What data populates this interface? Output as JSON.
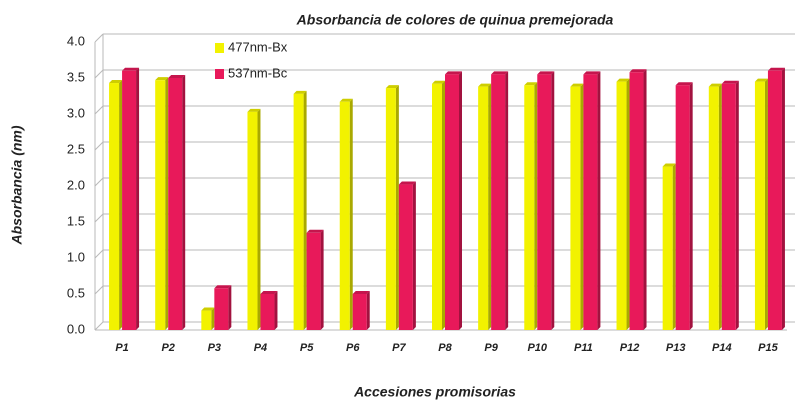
{
  "chart_data": {
    "type": "bar",
    "title": "Absorbancia de colores de quinua premejorada",
    "x_label": "Accesiones promisorias",
    "y_label": "Absorbancia (nm)",
    "categories": [
      "P1",
      "P2",
      "P3",
      "P4",
      "P5",
      "P6",
      "P7",
      "P8",
      "P9",
      "P10",
      "P11",
      "P12",
      "P13",
      "P14",
      "P15"
    ],
    "series": [
      {
        "name": "477nm-Bx",
        "color": "#f2f200",
        "values": [
          3.43,
          3.47,
          0.27,
          3.03,
          3.28,
          3.17,
          3.36,
          3.42,
          3.38,
          3.4,
          3.38,
          3.45,
          2.27,
          3.38,
          3.45
        ]
      },
      {
        "name": "537nm-Bc",
        "color": "#e8195a",
        "values": [
          3.6,
          3.5,
          0.58,
          0.5,
          1.35,
          0.5,
          2.02,
          3.55,
          3.55,
          3.55,
          3.55,
          3.58,
          3.4,
          3.42,
          3.6
        ]
      }
    ],
    "ylim": [
      0,
      4
    ],
    "yticks": [
      {
        "value": 0,
        "label": "0.0"
      },
      0.5,
      {
        "value": 1,
        "label": "1.0"
      },
      1.5,
      {
        "value": 2,
        "label": "2.0"
      },
      2.5,
      {
        "value": 3,
        "label": "3.0"
      },
      3.5,
      {
        "value": 4,
        "label": "4.0"
      }
    ],
    "grid": true
  }
}
